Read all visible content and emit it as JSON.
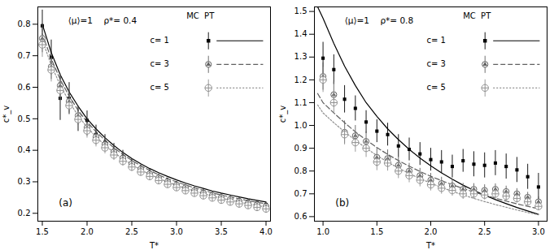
{
  "chart_data": [
    {
      "type": "line",
      "title": "⟨μ⟩=1    ρ*= 0.4",
      "xlabel": "T*",
      "ylabel": "c*_v",
      "annotations": [
        "(a)"
      ],
      "legend": "upper right",
      "legend_title": "MC  PT",
      "xlim": [
        1.45,
        4.05
      ],
      "ylim": [
        0.175,
        0.855
      ],
      "xticks": [
        1.5,
        {
          "value": 2.0,
          "label": "2.0"
        },
        2.5,
        {
          "value": 3.0,
          "label": "3.0"
        },
        3.5,
        {
          "value": 4.0,
          "label": "4.0"
        }
      ],
      "yticks": [
        0.2,
        0.3,
        0.4,
        0.5,
        0.6,
        0.7,
        0.8
      ],
      "series": [
        {
          "name": "c= 1",
          "color": "black",
          "line_style": "solid",
          "marker": "square",
          "x": [
            1.5,
            1.6,
            1.7,
            1.8,
            1.9,
            2.0,
            2.1,
            2.2,
            2.3,
            2.4,
            2.5,
            2.6,
            2.7,
            2.8,
            2.9,
            3.0,
            3.1,
            3.2,
            3.3,
            3.4,
            3.5,
            3.6,
            3.7,
            3.8,
            3.9,
            4.0
          ],
          "values": [
            0.8,
            0.71,
            0.64,
            0.585,
            0.54,
            0.5,
            0.468,
            0.44,
            0.415,
            0.393,
            0.374,
            0.357,
            0.342,
            0.329,
            0.317,
            0.306,
            0.296,
            0.287,
            0.279,
            0.271,
            0.264,
            0.258,
            0.252,
            0.246,
            0.241,
            0.236
          ],
          "mc_x": [
            1.5,
            1.6,
            1.7,
            1.8,
            1.9,
            2.0,
            2.1,
            2.2,
            2.3,
            2.4,
            2.5,
            2.6,
            2.7,
            2.8,
            2.9,
            3.0,
            3.1,
            3.2,
            3.3,
            3.4,
            3.5,
            3.6,
            3.7,
            3.8,
            3.9,
            4.0
          ],
          "mc_values": [
            0.795,
            0.695,
            0.565,
            0.565,
            0.5,
            0.495,
            0.45,
            0.425,
            0.4,
            0.38,
            0.355,
            0.338,
            0.325,
            0.312,
            0.3,
            0.29,
            0.282,
            0.274,
            0.267,
            0.26,
            0.254,
            0.248,
            0.242,
            0.237,
            0.232,
            0.228
          ],
          "mc_errors": [
            0.05,
            0.055,
            0.07,
            0.05,
            0.04,
            0.03,
            0.03,
            0.025,
            0.022,
            0.02,
            0.018,
            0.015,
            0.014,
            0.013,
            0.012,
            0.011,
            0.01,
            0.009,
            0.009,
            0.008,
            0.008,
            0.007,
            0.007,
            0.006,
            0.006,
            0.006
          ]
        },
        {
          "name": "c= 3",
          "color": "#606060",
          "line_style": "dashed",
          "marker": "circle-triangle",
          "x": [
            1.5,
            1.6,
            1.7,
            1.8,
            1.9,
            2.0,
            2.1,
            2.2,
            2.3,
            2.4,
            2.5,
            2.6,
            2.7,
            2.8,
            2.9,
            3.0,
            3.1,
            3.2,
            3.3,
            3.4,
            3.5,
            3.6,
            3.7,
            3.8,
            3.9,
            4.0
          ],
          "values": [
            0.77,
            0.69,
            0.625,
            0.572,
            0.527,
            0.49,
            0.459,
            0.432,
            0.408,
            0.387,
            0.368,
            0.351,
            0.336,
            0.322,
            0.31,
            0.3,
            0.29,
            0.281,
            0.273,
            0.265,
            0.258,
            0.252,
            0.246,
            0.24,
            0.235,
            0.23
          ],
          "mc_x": [
            1.5,
            1.6,
            1.7,
            1.8,
            1.9,
            2.0,
            2.1,
            2.2,
            2.3,
            2.4,
            2.5,
            2.6,
            2.7,
            2.8,
            2.9,
            3.0,
            3.1,
            3.2,
            3.3,
            3.4,
            3.5,
            3.6,
            3.7,
            3.8,
            3.9,
            4.0
          ],
          "mc_values": [
            0.755,
            0.665,
            0.605,
            0.555,
            0.51,
            0.472,
            0.442,
            0.418,
            0.395,
            0.375,
            0.357,
            0.34,
            0.325,
            0.312,
            0.3,
            0.29,
            0.281,
            0.272,
            0.264,
            0.257,
            0.25,
            0.244,
            0.238,
            0.232,
            0.227,
            0.222
          ],
          "mc_errors": [
            0.045,
            0.04,
            0.038,
            0.035,
            0.03,
            0.027,
            0.024,
            0.022,
            0.02,
            0.018,
            0.016,
            0.014,
            0.013,
            0.012,
            0.011,
            0.01,
            0.009,
            0.009,
            0.008,
            0.007,
            0.007,
            0.006,
            0.006,
            0.006,
            0.005,
            0.005
          ]
        },
        {
          "name": "c= 5",
          "color": "#909090",
          "line_style": "dotted",
          "marker": "circle-plus",
          "x": [
            1.5,
            1.6,
            1.7,
            1.8,
            1.9,
            2.0,
            2.1,
            2.2,
            2.3,
            2.4,
            2.5,
            2.6,
            2.7,
            2.8,
            2.9,
            3.0,
            3.1,
            3.2,
            3.3,
            3.4,
            3.5,
            3.6,
            3.7,
            3.8,
            3.9,
            4.0
          ],
          "values": [
            0.75,
            0.67,
            0.607,
            0.554,
            0.51,
            0.473,
            0.443,
            0.416,
            0.393,
            0.373,
            0.355,
            0.338,
            0.324,
            0.311,
            0.299,
            0.289,
            0.279,
            0.271,
            0.263,
            0.255,
            0.248,
            0.242,
            0.236,
            0.23,
            0.225,
            0.22
          ],
          "mc_x": [
            1.5,
            1.6,
            1.7,
            1.8,
            1.9,
            2.0,
            2.1,
            2.2,
            2.3,
            2.4,
            2.5,
            2.6,
            2.7,
            2.8,
            2.9,
            3.0,
            3.1,
            3.2,
            3.3,
            3.4,
            3.5,
            3.6,
            3.7,
            3.8,
            3.9,
            4.0
          ],
          "mc_values": [
            0.735,
            0.655,
            0.59,
            0.542,
            0.498,
            0.462,
            0.432,
            0.408,
            0.385,
            0.365,
            0.347,
            0.331,
            0.317,
            0.304,
            0.292,
            0.282,
            0.272,
            0.264,
            0.256,
            0.249,
            0.242,
            0.236,
            0.23,
            0.225,
            0.219,
            0.214
          ],
          "mc_errors": [
            0.04,
            0.038,
            0.035,
            0.03,
            0.026,
            0.023,
            0.021,
            0.019,
            0.017,
            0.015,
            0.014,
            0.012,
            0.011,
            0.01,
            0.009,
            0.009,
            0.008,
            0.007,
            0.007,
            0.006,
            0.006,
            0.006,
            0.005,
            0.005,
            0.004,
            0.004
          ]
        }
      ]
    },
    {
      "type": "line",
      "title": "⟨μ⟩=1    ρ*= 0.8",
      "xlabel": "T*",
      "ylabel": "c*_v",
      "annotations": [
        "(b)"
      ],
      "legend": "upper right",
      "legend_title": "MC  PT",
      "xlim": [
        0.92,
        3.08
      ],
      "ylim": [
        0.58,
        1.52
      ],
      "xticks": [
        {
          "value": 1.0,
          "label": "1.0"
        },
        1.5,
        {
          "value": 2.0,
          "label": "2.0"
        },
        2.5,
        {
          "value": 3.0,
          "label": "3.0"
        }
      ],
      "yticks": [
        0.6,
        0.7,
        0.8,
        0.9,
        {
          "value": 1.0,
          "label": "1.0"
        },
        1.1,
        1.2,
        1.3,
        1.4,
        1.5
      ],
      "series": [
        {
          "name": "c= 1",
          "color": "black",
          "line_style": "solid",
          "marker": "square",
          "x": [
            0.95,
            1.0,
            1.1,
            1.2,
            1.3,
            1.4,
            1.5,
            1.6,
            1.7,
            1.8,
            1.9,
            2.0,
            2.1,
            2.2,
            2.3,
            2.4,
            2.5,
            2.6,
            2.7,
            2.8,
            2.9,
            3.0
          ],
          "values": [
            1.52,
            1.47,
            1.36,
            1.26,
            1.175,
            1.1,
            1.04,
            0.985,
            0.938,
            0.895,
            0.857,
            0.823,
            0.792,
            0.764,
            0.738,
            0.715,
            0.694,
            0.675,
            0.657,
            0.64,
            0.625,
            0.61
          ],
          "mc_x": [
            1.0,
            1.1,
            1.2,
            1.3,
            1.4,
            1.5,
            1.6,
            1.7,
            1.8,
            1.9,
            2.0,
            2.1,
            2.2,
            2.3,
            2.4,
            2.5,
            2.6,
            2.7,
            2.8,
            2.9,
            3.0
          ],
          "mc_values": [
            1.295,
            1.245,
            1.115,
            1.075,
            1.015,
            0.975,
            0.96,
            0.91,
            0.895,
            0.875,
            0.85,
            0.84,
            0.82,
            0.845,
            0.83,
            0.825,
            0.835,
            0.82,
            0.805,
            0.775,
            0.73
          ],
          "mc_errors": [
            0.07,
            0.065,
            0.06,
            0.055,
            0.05,
            0.05,
            0.05,
            0.05,
            0.05,
            0.05,
            0.05,
            0.05,
            0.05,
            0.05,
            0.055,
            0.055,
            0.055,
            0.055,
            0.055,
            0.055,
            0.06
          ]
        },
        {
          "name": "c= 3",
          "color": "#606060",
          "line_style": "dashed",
          "marker": "circle-triangle",
          "x": [
            0.95,
            1.0,
            1.1,
            1.2,
            1.3,
            1.4,
            1.5,
            1.6,
            1.7,
            1.8,
            1.9,
            2.0,
            2.1,
            2.2,
            2.3,
            2.4,
            2.5,
            2.6,
            2.7,
            2.8,
            2.9,
            3.0
          ],
          "values": [
            1.14,
            1.1,
            1.055,
            1.012,
            0.972,
            0.936,
            0.903,
            0.873,
            0.846,
            0.821,
            0.798,
            0.777,
            0.758,
            0.74,
            0.723,
            0.708,
            0.694,
            0.681,
            0.668,
            0.656,
            0.645,
            0.635
          ],
          "mc_x": [
            1.0,
            1.1,
            1.2,
            1.3,
            1.4,
            1.5,
            1.6,
            1.7,
            1.8,
            1.9,
            2.0,
            2.1,
            2.2,
            2.3,
            2.4,
            2.5,
            2.6,
            2.7,
            2.8,
            2.9,
            3.0
          ],
          "mc_values": [
            1.215,
            1.135,
            0.97,
            0.955,
            0.93,
            0.86,
            0.855,
            0.825,
            0.8,
            0.78,
            0.76,
            0.745,
            0.735,
            0.72,
            0.72,
            0.715,
            0.72,
            0.71,
            0.7,
            0.685,
            0.665
          ],
          "mc_errors": [
            0.06,
            0.055,
            0.05,
            0.045,
            0.042,
            0.04,
            0.038,
            0.036,
            0.034,
            0.032,
            0.03,
            0.028,
            0.027,
            0.026,
            0.025,
            0.025,
            0.024,
            0.024,
            0.023,
            0.022,
            0.022
          ]
        },
        {
          "name": "c= 5",
          "color": "#909090",
          "line_style": "dotted",
          "marker": "circle-plus",
          "x": [
            0.95,
            1.0,
            1.1,
            1.2,
            1.3,
            1.4,
            1.5,
            1.6,
            1.7,
            1.8,
            1.9,
            2.0,
            2.1,
            2.2,
            2.3,
            2.4,
            2.5,
            2.6,
            2.7,
            2.8,
            2.9,
            3.0
          ],
          "values": [
            1.09,
            1.055,
            1.012,
            0.972,
            0.935,
            0.9,
            0.868,
            0.839,
            0.813,
            0.789,
            0.767,
            0.747,
            0.728,
            0.711,
            0.695,
            0.68,
            0.666,
            0.653,
            0.641,
            0.629,
            0.618,
            0.608
          ],
          "mc_x": [
            1.0,
            1.1,
            1.2,
            1.3,
            1.4,
            1.5,
            1.6,
            1.7,
            1.8,
            1.9,
            2.0,
            2.1,
            2.2,
            2.3,
            2.4,
            2.5,
            2.6,
            2.7,
            2.8,
            2.9,
            3.0
          ],
          "mc_values": [
            1.2,
            1.1,
            0.96,
            0.925,
            0.9,
            0.84,
            0.835,
            0.8,
            0.78,
            0.76,
            0.74,
            0.725,
            0.715,
            0.7,
            0.7,
            0.695,
            0.7,
            0.69,
            0.68,
            0.665,
            0.645
          ],
          "mc_errors": [
            0.055,
            0.05,
            0.045,
            0.042,
            0.04,
            0.038,
            0.035,
            0.033,
            0.031,
            0.029,
            0.027,
            0.026,
            0.025,
            0.024,
            0.023,
            0.022,
            0.022,
            0.021,
            0.02,
            0.02,
            0.019
          ]
        }
      ]
    }
  ]
}
